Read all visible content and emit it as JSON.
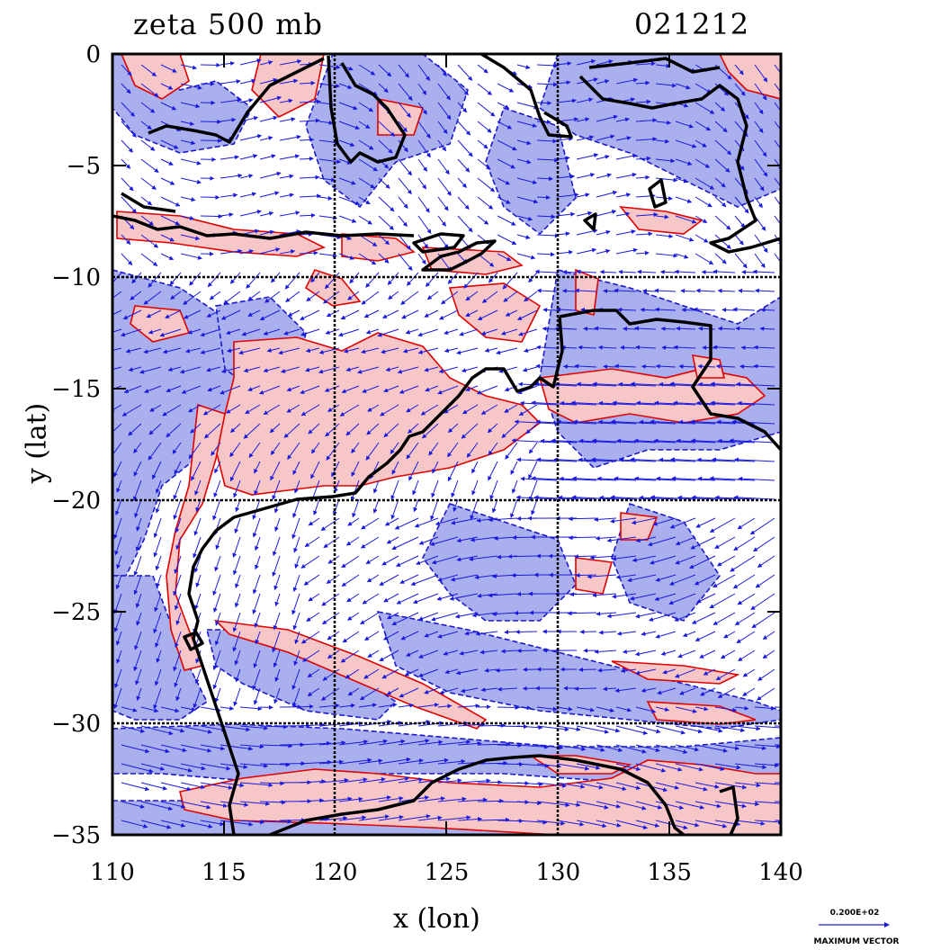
{
  "header": {
    "title": "zeta 500 mb",
    "date_code": "021212"
  },
  "axes": {
    "xlabel": "x (lon)",
    "ylabel": "y (lat)",
    "xlim": [
      110,
      140
    ],
    "ylim": [
      -35,
      0
    ],
    "xticks": [
      110,
      115,
      120,
      125,
      130,
      135,
      140
    ],
    "yticks": [
      0,
      -5,
      -10,
      -15,
      -20,
      -25,
      -30,
      -35
    ],
    "ytick_labels": [
      "0",
      "−5",
      "−10",
      "−15",
      "−20",
      "−25",
      "−30",
      "−35"
    ],
    "grid_lines_lon": [
      120,
      130
    ],
    "grid_lines_lat": [
      -10,
      -20,
      -30
    ]
  },
  "legend": {
    "vector_value": "0.200E+02",
    "vector_caption": "MAXIMUM VECTOR"
  },
  "colors": {
    "positive_fill": "#f7c6c6",
    "positive_line": "#e00000",
    "negative_fill": "#aab0ee",
    "negative_line": "#1a1acc",
    "vector": "#1a1add",
    "coast": "#000000"
  }
}
